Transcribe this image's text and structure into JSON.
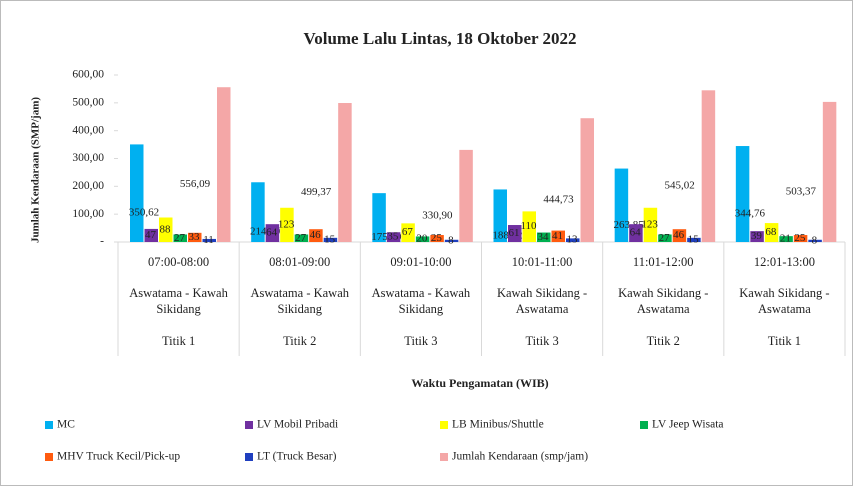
{
  "chart_data": {
    "type": "bar",
    "title": "Volume Lalu Lintas, 18 Oktober 2022",
    "y_label": "Jumlah Kendaraan (SMP/jam)",
    "x_label": "Waktu Pengamatan (WIB)",
    "categories": [
      "07:00-08:00",
      "08:01-09:00",
      "09:01-10:00",
      "10:01-11:00",
      "11:01-12:00",
      "12:01-13:00"
    ],
    "routes": [
      "Aswatama - Kawah Sikidang",
      "Aswatama - Kawah Sikidang",
      "Aswatama - Kawah Sikidang",
      "Kawah Sikidang - Aswatama",
      "Kawah Sikidang - Aswatama",
      "Kawah Sikidang - Aswatama"
    ],
    "points": [
      "Titik 1",
      "Titik 2",
      "Titik 3",
      "Titik 3",
      "Titik 2",
      "Titik 1"
    ],
    "ylim": [
      0,
      600
    ],
    "yticks": [
      {
        "value": 0,
        "label": "-"
      },
      {
        "value": 100,
        "label": "100,00"
      },
      {
        "value": 200,
        "label": "200,00"
      },
      {
        "value": 300,
        "label": "300,00"
      },
      {
        "value": 400,
        "label": "400,00"
      },
      {
        "value": 500,
        "label": "500,00"
      },
      {
        "value": 600,
        "label": "600,00"
      }
    ],
    "grid": false,
    "legend": "bottom",
    "series": [
      {
        "name": "MC",
        "color": "#00b0f0",
        "values": [
          350.62,
          214.6,
          175.5,
          188.82,
          263.85,
          344.76
        ],
        "value_labels": [
          "350,62",
          "214,60",
          "175,50",
          "188,82",
          "263,85",
          "344,76"
        ]
      },
      {
        "name": "LV Mobil Pribadi",
        "color": "#7030a0",
        "values": [
          47,
          64,
          35,
          61,
          64,
          39
        ]
      },
      {
        "name": "LB Minibus/Shuttle",
        "color": "#ffff00",
        "values": [
          88,
          123,
          67,
          110,
          123,
          68
        ]
      },
      {
        "name": "LV Jeep Wisata",
        "color": "#00b050",
        "values": [
          27,
          27,
          20,
          34,
          27,
          21
        ]
      },
      {
        "name": "MHV Truck Kecil/Pick-up",
        "color": "#ff5b0f",
        "values": [
          33,
          46,
          25,
          41,
          46,
          25
        ]
      },
      {
        "name": "LT (Truck Besar)",
        "color": "#1f3fbf",
        "values": [
          11,
          15,
          8,
          13,
          15,
          8
        ]
      },
      {
        "name": "Jumlah Kendaraan (smp/jam)",
        "color": "#f4a7a7",
        "values": [
          556.09,
          499.37,
          330.9,
          444.73,
          545.02,
          503.37
        ],
        "value_labels": [
          "556,09",
          "499,37",
          "330,90",
          "444,73",
          "545,02",
          "503,37"
        ]
      }
    ]
  }
}
